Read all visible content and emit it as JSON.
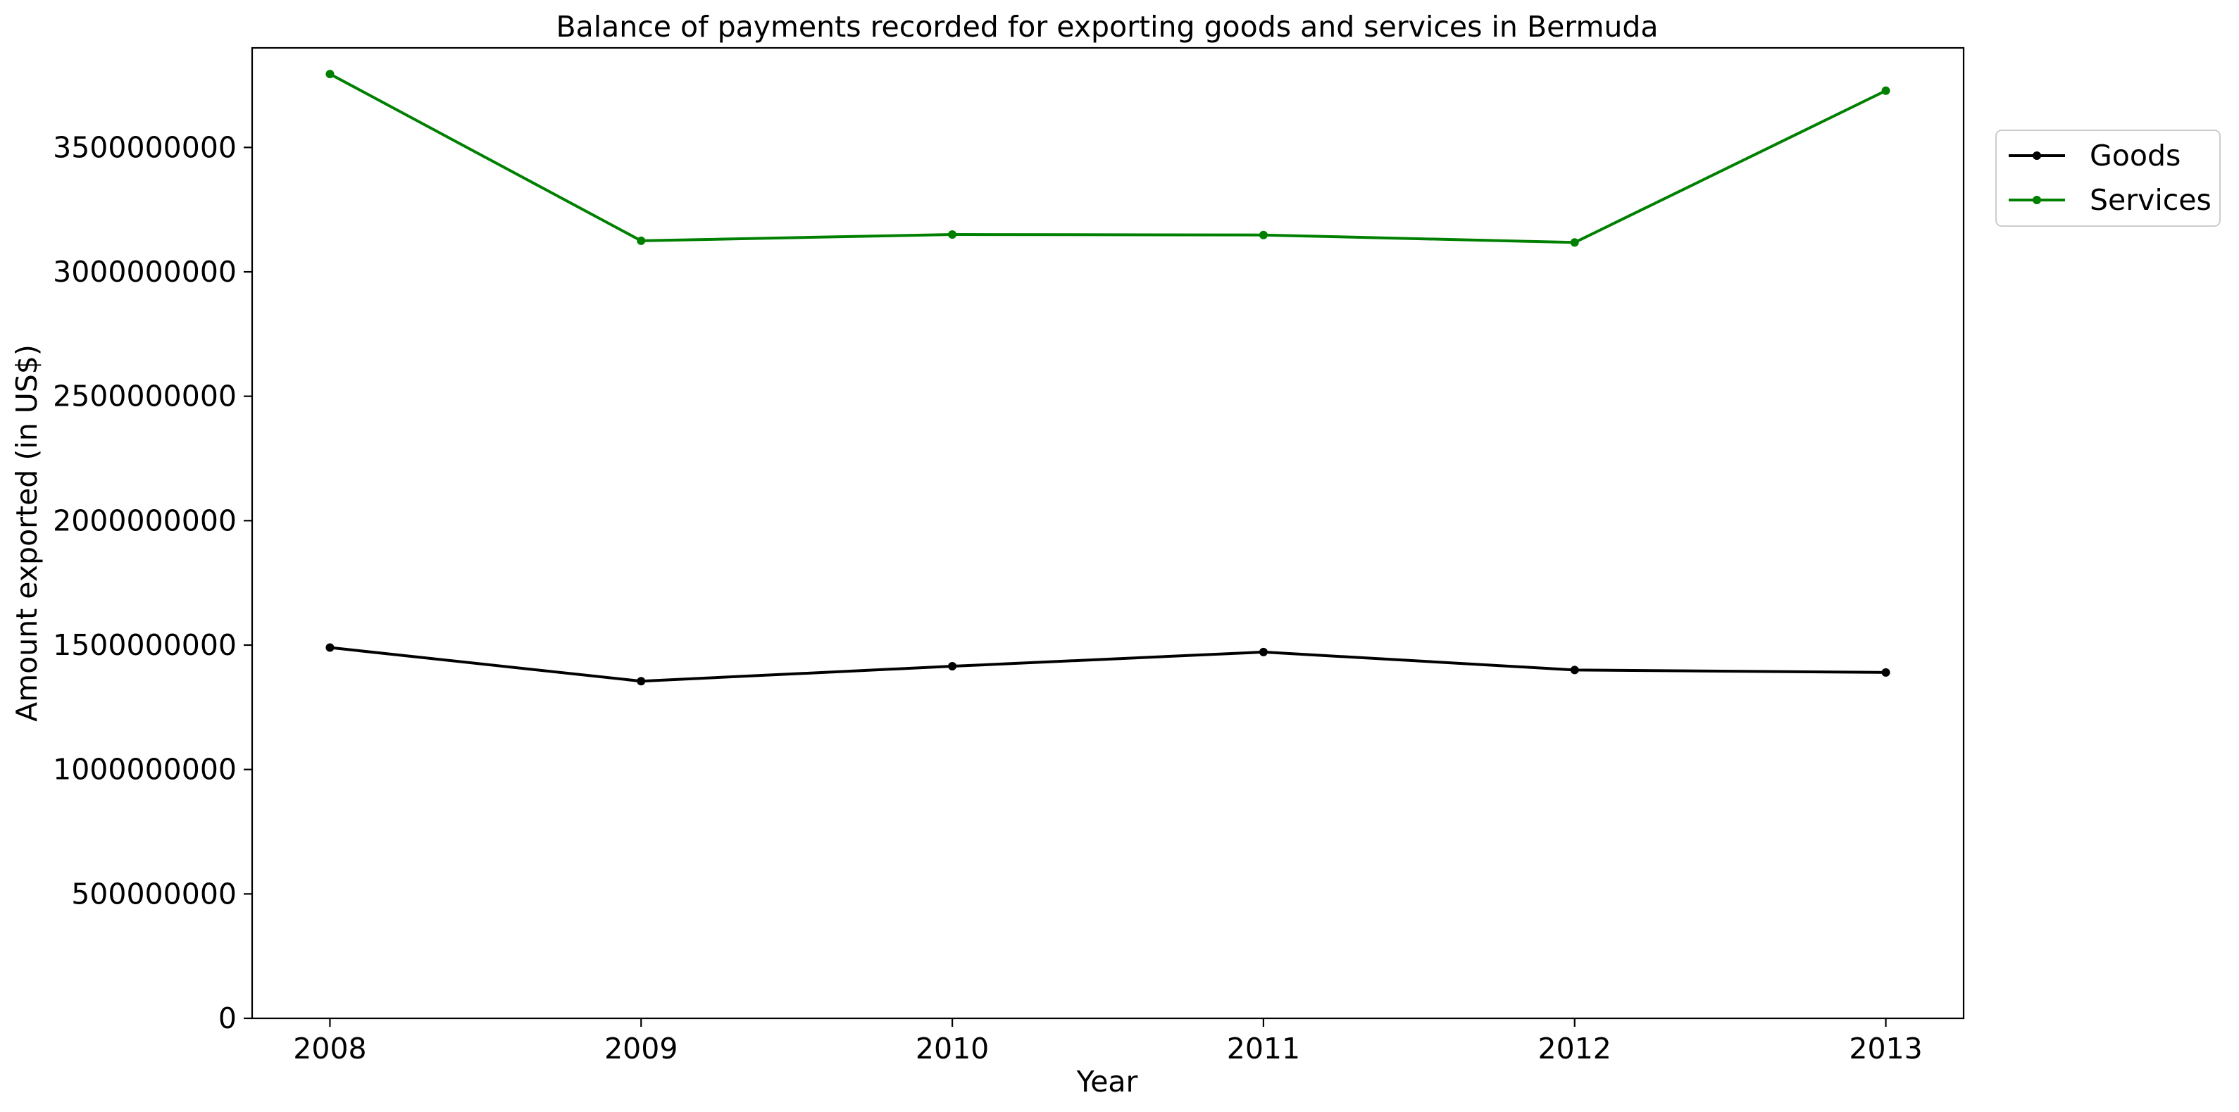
{
  "chart_data": {
    "type": "line",
    "title": "Balance of payments recorded for exporting goods and services in Bermuda",
    "xlabel": "Year",
    "ylabel": "Amount exported (in US$)",
    "x": [
      2008,
      2009,
      2010,
      2011,
      2012,
      2013
    ],
    "x_tick_labels": [
      "2008",
      "2009",
      "2010",
      "2011",
      "2012",
      "2013"
    ],
    "xlim": [
      2007.75,
      2013.25
    ],
    "ylim": [
      0,
      3900000000
    ],
    "y_ticks": [
      0,
      500000000,
      1000000000,
      1500000000,
      2000000000,
      2500000000,
      3000000000,
      3500000000
    ],
    "y_tick_labels": [
      "0",
      "500000000",
      "1000000000",
      "1500000000",
      "2000000000",
      "2500000000",
      "3000000000",
      "3500000000"
    ],
    "grid": false,
    "legend_position": "right, outside plot, near top",
    "series": [
      {
        "name": "Goods",
        "color": "#000000",
        "values": [
          1490000000,
          1355000000,
          1415000000,
          1472000000,
          1400000000,
          1390000000
        ]
      },
      {
        "name": "Services",
        "color": "#008000",
        "values": [
          3795000000,
          3125000000,
          3150000000,
          3148000000,
          3118000000,
          3728000000
        ]
      }
    ]
  }
}
